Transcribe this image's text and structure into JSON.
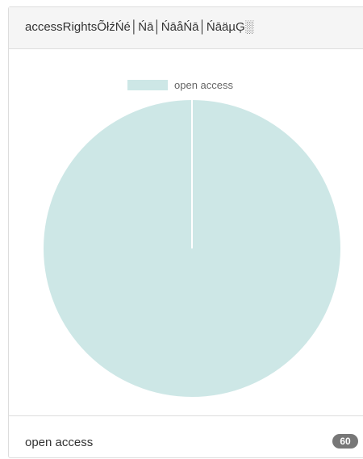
{
  "panel": {
    "title": "accessRightsÕłźŃé│Ńā│ŃāåŃā│ŃāäµĢ░"
  },
  "chart_data": {
    "type": "pie",
    "title": "",
    "legend_position": "top",
    "slices": [
      {
        "label": "open access",
        "value": 60,
        "color": "#cde7e6"
      }
    ]
  },
  "list": [
    {
      "label": "open access",
      "count": "60"
    }
  ],
  "colors": {
    "slice_border": "#ffffff",
    "badge": "#777777",
    "heading_bg": "#f5f5f5"
  }
}
